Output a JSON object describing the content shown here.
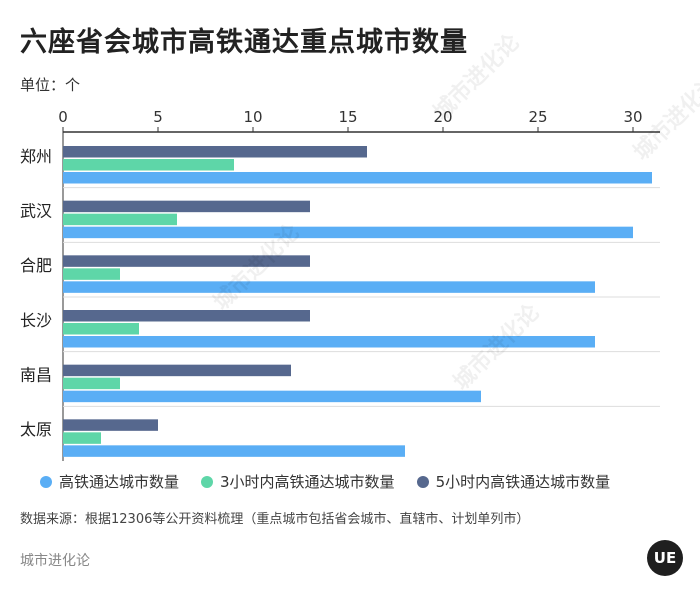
{
  "title": "六座省会城市高铁通达重点城市数量",
  "unit_label": "单位：个",
  "source_note": "数据来源：根据12306等公开资料梳理（重点城市包括省会城市、直辖市、计划单列市）",
  "brand": "城市进化论",
  "badge_text": "UE",
  "watermark_text": "城市进化论",
  "colors": {
    "total": "#5aaef5",
    "three_hour": "#5ed6a8",
    "five_hour": "#56688e",
    "grid": "#dddddd",
    "axis": "#333333"
  },
  "chart_data": {
    "type": "bar",
    "orientation": "horizontal",
    "categories": [
      "郑州",
      "武汉",
      "合肥",
      "长沙",
      "南昌",
      "太原"
    ],
    "series": [
      {
        "name": "5小时内高铁通达城市数量",
        "values": [
          16,
          13,
          13,
          13,
          12,
          5
        ]
      },
      {
        "name": "3小时内高铁通达城市数量",
        "values": [
          9,
          6,
          3,
          4,
          3,
          2
        ]
      },
      {
        "name": "高铁通达城市数量",
        "values": [
          31,
          30,
          28,
          28,
          22,
          18
        ]
      }
    ],
    "xlim": [
      0,
      32
    ],
    "xticks": [
      0,
      5,
      10,
      15,
      20,
      25,
      30
    ],
    "legend_order": [
      "高铁通达城市数量",
      "3小时内高铁通达城市数量",
      "5小时内高铁通达城市数量"
    ],
    "legend_position": "bottom",
    "grid": true
  }
}
